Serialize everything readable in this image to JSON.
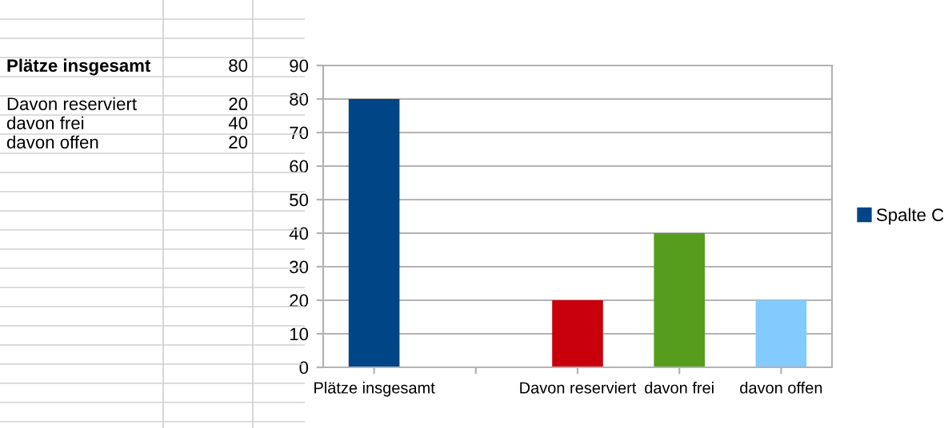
{
  "chart_data": {
    "type": "bar",
    "categories": [
      "Plätze insgesamt",
      null,
      "Davon reserviert",
      "davon frei",
      "davon offen"
    ],
    "series": [
      {
        "name": "Spalte C",
        "color": "#004586",
        "colors": [
          "#004586",
          null,
          "#c9000b",
          "#579d1c",
          "#83caff"
        ],
        "values": [
          80,
          null,
          20,
          40,
          20
        ]
      }
    ],
    "ylim": [
      0,
      90
    ],
    "yticks": [
      0,
      10,
      20,
      30,
      40,
      50,
      60,
      70,
      80,
      90
    ],
    "grid": "y",
    "legend": "right",
    "annotations": [
      "Plätze insgesamt",
      "80",
      "Davon reserviert",
      "20",
      "davon frei",
      "40",
      "davon offen",
      "20"
    ]
  }
}
